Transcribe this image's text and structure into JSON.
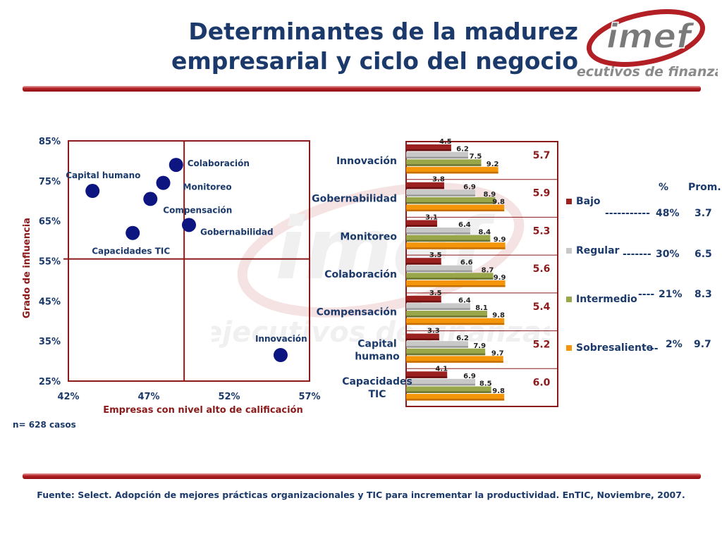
{
  "header": {
    "title_line1": "Determinantes de la madurez",
    "title_line2": "empresarial y ciclo del negocio",
    "logo_text": "imef",
    "logo_tagline": "ejecutivos de finanzas"
  },
  "colors": {
    "title": "#1b3a6b",
    "accent_red": "#8b1a1a",
    "point": "#0d1580",
    "bajo": "#9b2020",
    "regular": "#c8c8c8",
    "intermedio": "#9aa64a",
    "sobresaliente": "#f5960a"
  },
  "chart_data": [
    {
      "type": "scatter",
      "xlabel": "Empresas con nivel alto de calificación",
      "ylabel": "Grado de influencia",
      "xlim": [
        42,
        57
      ],
      "ylim": [
        25,
        85
      ],
      "x_ticks": [
        "42%",
        "47%",
        "52%",
        "57%"
      ],
      "y_ticks": [
        "85%",
        "75%",
        "65%",
        "55%",
        "45%",
        "35%",
        "25%"
      ],
      "reference_lines": {
        "x": 49.2,
        "y": 55.5
      },
      "points": [
        {
          "label": "Capital humano",
          "x": 43.5,
          "y": 72.5
        },
        {
          "label": "Colaboración",
          "x": 48.7,
          "y": 79
        },
        {
          "label": "Monitoreo",
          "x": 47.9,
          "y": 74.5
        },
        {
          "label": "Compensación",
          "x": 47.1,
          "y": 70.5
        },
        {
          "label": "Gobernabilidad",
          "x": 49.5,
          "y": 64
        },
        {
          "label": "Capacidades TIC",
          "x": 46.0,
          "y": 62
        },
        {
          "label": "Innovación",
          "x": 55.2,
          "y": 31.5
        }
      ]
    },
    {
      "type": "bar",
      "orientation": "horizontal",
      "xlim": [
        0,
        10
      ],
      "categories": [
        "Innovación",
        "Gobernabilidad",
        "Monitoreo",
        "Colaboración",
        "Compensación",
        "Capital humano",
        "Capacidades TIC"
      ],
      "category_lines": [
        [
          "Innovación"
        ],
        [
          "Gobernabilidad"
        ],
        [
          "Monitoreo"
        ],
        [
          "Colaboración"
        ],
        [
          "Compensación"
        ],
        [
          "Capital",
          "humano"
        ],
        [
          "Capacidades",
          "TIC"
        ]
      ],
      "averages": [
        "5.7",
        "5.9",
        "5.3",
        "5.6",
        "5.4",
        "5.2",
        "6.0"
      ],
      "series": [
        {
          "name": "Bajo",
          "values": [
            4.5,
            3.8,
            3.1,
            3.5,
            3.5,
            3.3,
            4.1
          ]
        },
        {
          "name": "Regular",
          "values": [
            6.2,
            6.9,
            6.4,
            6.6,
            6.4,
            6.2,
            6.9
          ]
        },
        {
          "name": "Intermedio",
          "values": [
            7.5,
            8.9,
            8.4,
            8.7,
            8.1,
            7.9,
            8.5
          ]
        },
        {
          "name": "Sobresaliente",
          "values": [
            9.2,
            9.8,
            9.9,
            9.9,
            9.8,
            9.7,
            9.8
          ]
        }
      ]
    }
  ],
  "legend": {
    "header_percent": "%",
    "header_prom": "Prom.",
    "items": [
      {
        "name": "Bajo",
        "percent": "48%",
        "prom": "3.7",
        "dashes": "-----------"
      },
      {
        "name": "Regular",
        "percent": "30%",
        "prom": "6.5",
        "dashes": "-------"
      },
      {
        "name": "Intermedio",
        "percent": "21%",
        "prom": "8.3",
        "dashes": "----"
      },
      {
        "name": "Sobresaliente",
        "percent": "2%",
        "prom": "9.7",
        "dashes": "--"
      }
    ]
  },
  "footnote": "n= 628 casos",
  "source": "Fuente: Select. Adopción de mejores prácticas organizacionales y TIC para incrementar la productividad. EnTIC, Noviembre, 2007."
}
